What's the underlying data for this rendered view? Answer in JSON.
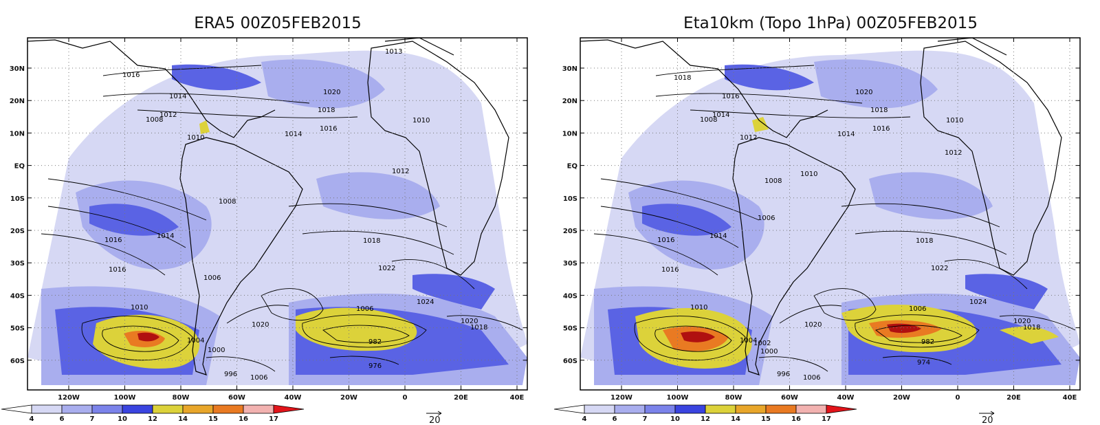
{
  "panels": [
    {
      "title": "ERA5 00Z05FEB2015",
      "isobar_labels": [
        "1016",
        "1014",
        "1012",
        "1010",
        "1008",
        "1020",
        "1018",
        "1016",
        "1014",
        "1012",
        "1010",
        "1008",
        "1006",
        "1004",
        "1020",
        "1022",
        "1018",
        "1016",
        "1014",
        "1024",
        "1020",
        "1018",
        "1016",
        "1006",
        "1000",
        "982",
        "976",
        "996",
        "1006",
        "1010",
        "1013"
      ]
    },
    {
      "title": "Eta10km (Topo 1hPa) 00Z05FEB2015",
      "isobar_labels": [
        "1018",
        "1016",
        "1014",
        "1012",
        "1010",
        "1008",
        "1020",
        "1018",
        "1016",
        "1014",
        "1012",
        "1010",
        "1008",
        "1006",
        "1004",
        "1020",
        "1022",
        "1018",
        "1016",
        "1014",
        "1024",
        "1020",
        "1018",
        "1016",
        "1006",
        "1002",
        "1000",
        "982",
        "974",
        "996",
        "1006",
        "1010"
      ]
    }
  ],
  "axes": {
    "lat_labels": [
      "30N",
      "20N",
      "10N",
      "EQ",
      "10S",
      "20S",
      "30S",
      "40S",
      "50S",
      "60S"
    ],
    "lon_labels": [
      "120W",
      "100W",
      "80W",
      "60W",
      "40W",
      "20W",
      "0",
      "20E",
      "40E"
    ]
  },
  "colorbar": {
    "values": [
      "4",
      "6",
      "7",
      "10",
      "12",
      "14",
      "15",
      "16",
      "17"
    ],
    "colors": [
      "#ffffff",
      "#d6d8f4",
      "#a9aeee",
      "#7b83ea",
      "#3a44e0",
      "#dcd23a",
      "#e8a62a",
      "#e97a22",
      "#f2b2b0",
      "#e2141a"
    ]
  },
  "vector_reference": {
    "value": "20"
  }
}
